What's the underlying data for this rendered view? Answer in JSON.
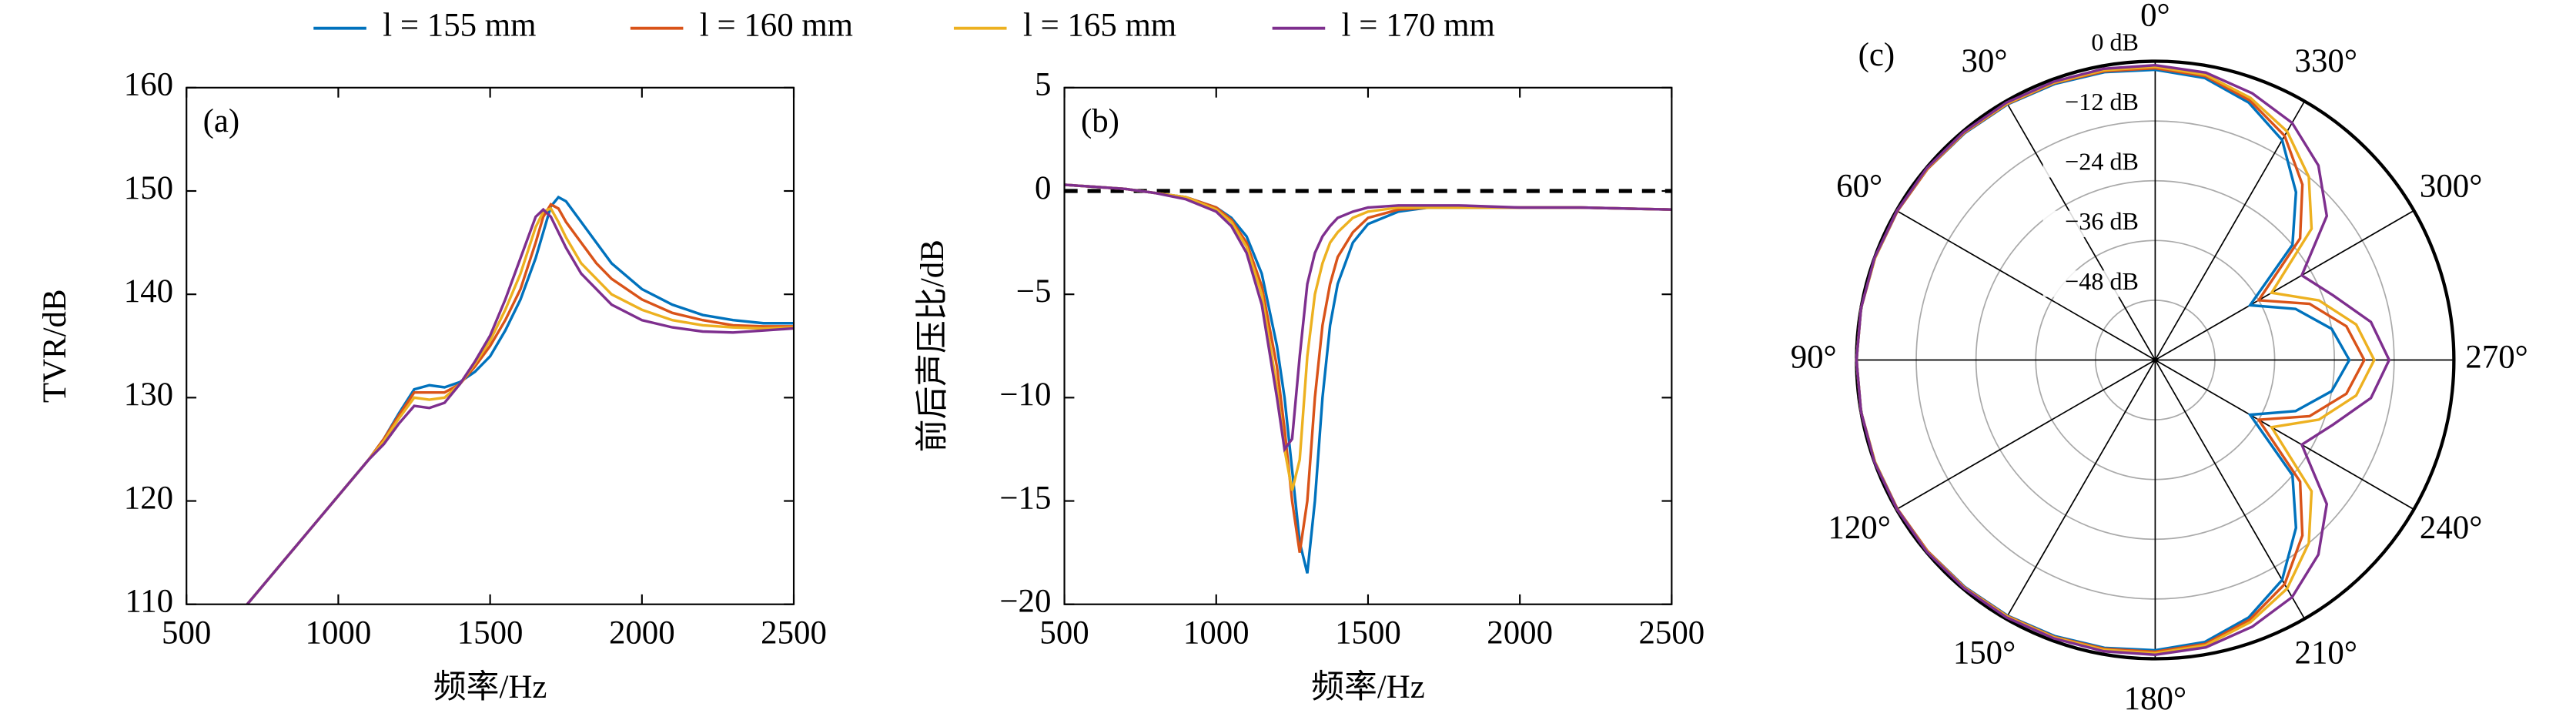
{
  "chart_data": [
    {
      "type": "line",
      "panel_label": "(a)",
      "xlabel": "频率/Hz",
      "ylabel": "TVR/dB",
      "legend": "top",
      "xlim": [
        500,
        2500
      ],
      "xticks": [
        500,
        1000,
        1500,
        2000,
        2500
      ],
      "ylim": [
        110,
        160
      ],
      "yticks": [
        110,
        120,
        130,
        140,
        150,
        160
      ],
      "x": [
        700,
        800,
        900,
        1000,
        1100,
        1150,
        1200,
        1250,
        1300,
        1350,
        1400,
        1450,
        1500,
        1550,
        1600,
        1650,
        1675,
        1700,
        1725,
        1750,
        1800,
        1850,
        1900,
        2000,
        2100,
        2200,
        2300,
        2400,
        2500
      ],
      "series": [
        {
          "name": "l = 155 mm",
          "color": "#0072BD",
          "values": [
            110,
            113.5,
            117,
            120.5,
            124,
            126,
            128.5,
            130.8,
            131.2,
            131,
            131.5,
            132.5,
            134,
            136.5,
            139.5,
            143.5,
            146,
            148.5,
            149.4,
            149,
            147,
            145,
            143,
            140.5,
            139,
            138,
            137.5,
            137.2,
            137.2
          ]
        },
        {
          "name": "l = 160 mm",
          "color": "#D95319",
          "values": [
            110,
            113.5,
            117,
            120.5,
            124,
            126,
            128.3,
            130.5,
            130.5,
            130.5,
            131.3,
            133,
            135,
            137.5,
            140.5,
            145,
            147.5,
            148.7,
            148.3,
            147,
            145,
            143,
            141.5,
            139.5,
            138.2,
            137.5,
            137,
            136.9,
            136.9
          ]
        },
        {
          "name": "l = 165 mm",
          "color": "#EDB120",
          "values": [
            110,
            113.5,
            117,
            120.5,
            124,
            125.8,
            128,
            130,
            129.8,
            130,
            131.3,
            133.3,
            135.5,
            138.5,
            142,
            146.5,
            148,
            148.3,
            147,
            145.5,
            143,
            141.5,
            140,
            138.5,
            137.5,
            137,
            136.8,
            136.7,
            136.8
          ]
        },
        {
          "name": "l = 170 mm",
          "color": "#7E2F8E",
          "values": [
            110,
            113.5,
            117,
            120.5,
            124,
            125.5,
            127.5,
            129.2,
            129,
            129.5,
            131.3,
            133.5,
            136,
            139.5,
            143.5,
            147.5,
            148.2,
            147.5,
            146,
            144.5,
            142,
            140.5,
            139,
            137.5,
            136.8,
            136.4,
            136.3,
            136.5,
            136.7
          ]
        }
      ]
    },
    {
      "type": "line",
      "panel_label": "(b)",
      "xlabel": "频率/Hz",
      "ylabel": "前后声压比/dB",
      "hline": 0,
      "xlim": [
        500,
        2500
      ],
      "xticks": [
        500,
        1000,
        1500,
        2000,
        2500
      ],
      "ylim": [
        -20,
        5
      ],
      "yticks": [
        {
          "value": -20,
          "label": "−20"
        },
        {
          "value": -15,
          "label": "−15"
        },
        {
          "value": -10,
          "label": "−10"
        },
        {
          "value": -5,
          "label": "−5"
        },
        0,
        5
      ],
      "x": [
        500,
        600,
        700,
        800,
        900,
        1000,
        1050,
        1100,
        1150,
        1200,
        1225,
        1250,
        1275,
        1300,
        1325,
        1350,
        1375,
        1400,
        1450,
        1500,
        1600,
        1700,
        1800,
        2000,
        2200,
        2500
      ],
      "series": [
        {
          "name": "l = 155 mm",
          "color": "#0072BD",
          "values": [
            0.3,
            0.2,
            0.1,
            -0.1,
            -0.3,
            -0.8,
            -1.3,
            -2.2,
            -4,
            -7.5,
            -10,
            -13.5,
            -17,
            -18.5,
            -15,
            -10,
            -6.5,
            -4.5,
            -2.5,
            -1.6,
            -1,
            -0.8,
            -0.8,
            -0.8,
            -0.8,
            -0.9
          ]
        },
        {
          "name": "l = 160 mm",
          "color": "#D95319",
          "values": [
            0.3,
            0.2,
            0.1,
            -0.1,
            -0.3,
            -0.8,
            -1.4,
            -2.5,
            -4.6,
            -8.5,
            -11.5,
            -15,
            -17.5,
            -15,
            -10,
            -6.5,
            -4.5,
            -3.2,
            -2,
            -1.3,
            -0.9,
            -0.8,
            -0.8,
            -0.8,
            -0.8,
            -0.9
          ]
        },
        {
          "name": "l = 165 mm",
          "color": "#EDB120",
          "values": [
            0.3,
            0.2,
            0.1,
            -0.1,
            -0.3,
            -0.9,
            -1.5,
            -2.7,
            -5,
            -9.5,
            -12.5,
            -14.5,
            -13,
            -8,
            -5,
            -3.5,
            -2.5,
            -2,
            -1.3,
            -1,
            -0.8,
            -0.8,
            -0.8,
            -0.8,
            -0.8,
            -0.9
          ]
        },
        {
          "name": "l = 170 mm",
          "color": "#7E2F8E",
          "values": [
            0.3,
            0.2,
            0.1,
            -0.1,
            -0.4,
            -1,
            -1.7,
            -3,
            -5.5,
            -10,
            -12.5,
            -12,
            -8,
            -4.5,
            -3,
            -2.2,
            -1.7,
            -1.3,
            -1,
            -0.8,
            -0.7,
            -0.7,
            -0.7,
            -0.8,
            -0.8,
            -0.9
          ]
        }
      ]
    },
    {
      "type": "polar",
      "panel_label": "(c)",
      "rlim": [
        -60,
        0
      ],
      "rticks": [
        {
          "value": 0,
          "label": "0 dB"
        },
        {
          "value": -12,
          "label": "−12 dB"
        },
        {
          "value": -24,
          "label": "−24 dB"
        },
        {
          "value": -36,
          "label": "−36 dB"
        },
        {
          "value": -48,
          "label": "−48 dB"
        }
      ],
      "thetaticks": [
        {
          "value": 0,
          "label": "0°"
        },
        {
          "value": 30,
          "label": "30°"
        },
        {
          "value": 60,
          "label": "60°"
        },
        {
          "value": 90,
          "label": "90°"
        },
        {
          "value": 120,
          "label": "120°"
        },
        {
          "value": 150,
          "label": "150°"
        },
        {
          "value": 180,
          "label": "180°"
        },
        {
          "value": 210,
          "label": "210°"
        },
        {
          "value": 240,
          "label": "240°"
        },
        {
          "value": 270,
          "label": "270°"
        },
        {
          "value": 300,
          "label": "300°"
        },
        {
          "value": 330,
          "label": "330°"
        }
      ],
      "theta": [
        0,
        10,
        20,
        30,
        40,
        50,
        60,
        70,
        80,
        90,
        100,
        110,
        120,
        130,
        140,
        150,
        160,
        170,
        180,
        190,
        200,
        210,
        220,
        230,
        240,
        250,
        260,
        270,
        280,
        290,
        300,
        310,
        320,
        330,
        340,
        350,
        360
      ],
      "series": [
        {
          "name": "l = 155 mm",
          "color": "#0072BD",
          "values": [
            -1.7,
            -1.3,
            -1,
            -0.7,
            -0.5,
            -0.3,
            -0.2,
            -0.1,
            0,
            0,
            0,
            -0.1,
            -0.2,
            -0.3,
            -0.5,
            -0.7,
            -1,
            -1.3,
            -1.7,
            -2.5,
            -5,
            -9,
            -16,
            -24,
            -38,
            -30,
            -24,
            -21,
            -24,
            -30,
            -38,
            -24,
            -16,
            -9,
            -5,
            -2.5,
            -1.7
          ]
        },
        {
          "name": "l = 160 mm",
          "color": "#D95319",
          "values": [
            -1.4,
            -1.1,
            -0.8,
            -0.6,
            -0.4,
            -0.3,
            -0.2,
            -0.1,
            0,
            0,
            0,
            -0.1,
            -0.2,
            -0.3,
            -0.4,
            -0.6,
            -0.8,
            -1.1,
            -1.4,
            -2.1,
            -4.5,
            -8,
            -14,
            -22,
            -36,
            -27,
            -21,
            -18,
            -21,
            -27,
            -36,
            -22,
            -14,
            -8,
            -4.5,
            -2.1,
            -1.4
          ]
        },
        {
          "name": "l = 165 mm",
          "color": "#EDB120",
          "values": [
            -1.1,
            -0.9,
            -0.7,
            -0.5,
            -0.3,
            -0.2,
            -0.1,
            -0.1,
            0,
            0,
            0,
            -0.1,
            -0.1,
            -0.2,
            -0.3,
            -0.5,
            -0.7,
            -0.9,
            -1.1,
            -1.8,
            -4,
            -7,
            -12,
            -19,
            -33,
            -25,
            -19,
            -16,
            -19,
            -25,
            -33,
            -19,
            -12,
            -7,
            -4,
            -1.8,
            -1.1
          ]
        },
        {
          "name": "l = 170 mm",
          "color": "#7E2F8E",
          "values": [
            -0.8,
            -0.6,
            -0.5,
            -0.3,
            -0.2,
            -0.1,
            -0.1,
            0,
            0,
            0,
            0,
            0,
            -0.1,
            -0.1,
            -0.2,
            -0.3,
            -0.5,
            -0.6,
            -0.8,
            -1.4,
            -3,
            -5,
            -9,
            -15,
            -26,
            -22,
            -16,
            -13,
            -16,
            -22,
            -26,
            -15,
            -9,
            -5,
            -3,
            -1.4,
            -0.8
          ]
        }
      ]
    }
  ]
}
